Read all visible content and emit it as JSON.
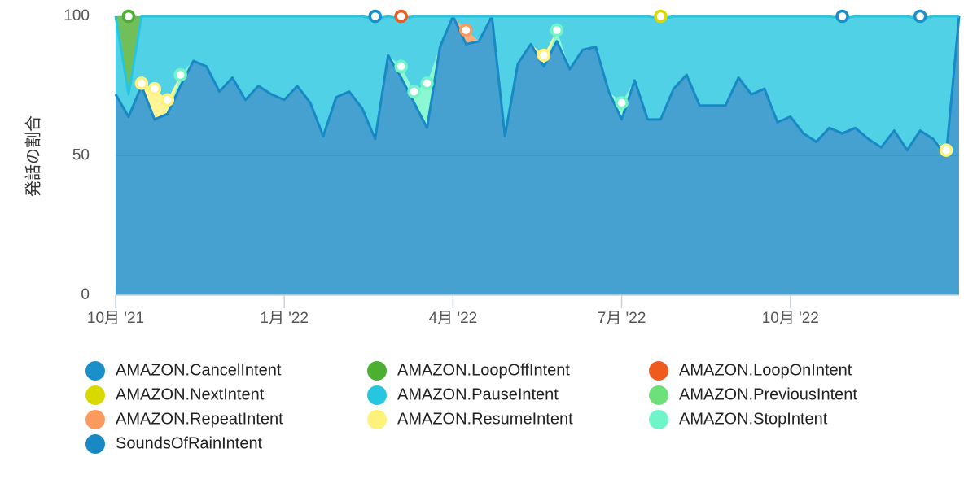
{
  "chart_data": {
    "type": "stacked_area",
    "y_label": "発話の割合",
    "x": [
      0,
      1,
      2,
      3,
      4,
      5,
      6,
      7,
      8,
      9,
      10,
      11,
      12,
      13,
      14,
      15,
      16,
      17,
      18,
      19,
      20,
      21,
      22,
      23,
      24,
      25,
      26,
      27,
      28,
      29,
      30,
      31,
      32,
      33,
      34,
      35,
      36,
      37,
      38,
      39,
      40,
      41,
      42,
      43,
      44,
      45,
      46,
      47,
      48,
      49,
      50,
      51,
      52,
      53,
      54,
      55,
      56,
      57,
      58,
      59,
      60,
      61,
      62,
      63,
      64,
      65
    ],
    "xlim": [
      0,
      65
    ],
    "xticks": [
      {
        "value": 0,
        "label": "10月 '21"
      },
      {
        "value": 13,
        "label": "1月 '22"
      },
      {
        "value": 26,
        "label": "4月 '22"
      },
      {
        "value": 39,
        "label": "7月 '22"
      },
      {
        "value": 52,
        "label": "10月 '22"
      }
    ],
    "ylim": [
      0,
      100
    ],
    "yticks": [
      0,
      50,
      100
    ],
    "grid": true,
    "series": [
      {
        "name": "AMAZON.CancelIntent",
        "color": "#1a8fc9",
        "values": [
          0,
          0,
          0,
          0,
          0,
          0,
          0,
          0,
          0,
          0,
          0,
          0,
          0,
          0,
          0,
          0,
          0,
          0,
          0,
          0,
          1,
          0,
          0,
          0,
          0,
          0,
          0,
          0,
          0,
          0,
          0,
          0,
          0,
          0,
          0,
          0,
          0,
          0,
          0,
          0,
          0,
          0,
          0,
          0,
          0,
          0,
          0,
          0,
          0,
          0,
          0,
          0,
          0,
          0,
          0,
          0,
          1,
          0,
          0,
          0,
          0,
          0,
          1,
          0,
          0,
          0
        ]
      },
      {
        "name": "AMAZON.LoopOffIntent",
        "color": "#4caf32",
        "values": [
          0,
          28,
          0,
          0,
          0,
          0,
          0,
          0,
          0,
          0,
          0,
          0,
          0,
          0,
          0,
          0,
          0,
          0,
          0,
          0,
          0,
          0,
          0,
          0,
          0,
          0,
          0,
          0,
          0,
          0,
          0,
          0,
          0,
          0,
          0,
          0,
          0,
          0,
          0,
          0,
          0,
          0,
          0,
          0,
          0,
          0,
          0,
          0,
          0,
          0,
          0,
          0,
          0,
          0,
          0,
          0,
          0,
          0,
          0,
          0,
          0,
          0,
          0,
          0,
          0,
          0
        ]
      },
      {
        "name": "AMAZON.LoopOnIntent",
        "color": "#ef5a1e",
        "values": [
          0,
          0,
          0,
          0,
          0,
          0,
          0,
          0,
          0,
          0,
          0,
          0,
          0,
          0,
          0,
          0,
          0,
          0,
          0,
          0,
          0,
          0,
          1,
          0,
          0,
          0,
          0,
          0,
          0,
          0,
          0,
          0,
          0,
          0,
          0,
          0,
          0,
          0,
          0,
          0,
          0,
          0,
          0,
          0,
          0,
          0,
          0,
          0,
          0,
          0,
          0,
          0,
          0,
          0,
          0,
          0,
          0,
          0,
          0,
          0,
          0,
          0,
          0,
          0,
          0,
          0
        ]
      },
      {
        "name": "AMAZON.NextIntent",
        "color": "#d9d900",
        "values": [
          0,
          0,
          0,
          0,
          0,
          0,
          0,
          0,
          0,
          0,
          0,
          0,
          0,
          0,
          0,
          0,
          0,
          0,
          0,
          0,
          0,
          0,
          0,
          0,
          0,
          0,
          0,
          0,
          0,
          0,
          0,
          0,
          0,
          0,
          0,
          0,
          0,
          0,
          0,
          0,
          0,
          0,
          1,
          0,
          0,
          0,
          0,
          0,
          0,
          0,
          0,
          0,
          0,
          0,
          0,
          0,
          0,
          0,
          0,
          0,
          0,
          0,
          0,
          0,
          0,
          0
        ]
      },
      {
        "name": "AMAZON.PauseIntent",
        "color": "#26c6e0",
        "values": [
          28,
          8,
          24,
          26,
          30,
          21,
          16,
          18,
          27,
          22,
          30,
          25,
          28,
          30,
          25,
          31,
          43,
          29,
          27,
          33,
          43,
          14,
          17,
          27,
          24,
          11,
          0,
          5,
          9,
          0,
          43,
          17,
          10,
          14,
          5,
          19,
          12,
          11,
          27,
          31,
          23,
          37,
          36,
          26,
          21,
          32,
          32,
          32,
          22,
          28,
          26,
          38,
          36,
          42,
          45,
          40,
          41,
          40,
          44,
          47,
          41,
          48,
          40,
          44,
          48,
          0
        ]
      },
      {
        "name": "AMAZON.PreviousIntent",
        "color": "#6de07a",
        "values": [
          0,
          0,
          0,
          0,
          0,
          0,
          0,
          0,
          0,
          0,
          0,
          0,
          0,
          0,
          0,
          0,
          0,
          0,
          0,
          0,
          0,
          0,
          0,
          0,
          0,
          0,
          0,
          0,
          0,
          0,
          0,
          0,
          0,
          0,
          0,
          0,
          0,
          0,
          0,
          0,
          0,
          0,
          0,
          0,
          0,
          0,
          0,
          0,
          0,
          0,
          0,
          0,
          0,
          0,
          0,
          0,
          0,
          0,
          0,
          0,
          0,
          0,
          0,
          0,
          0,
          0
        ]
      },
      {
        "name": "AMAZON.RepeatIntent",
        "color": "#fa9a5e",
        "values": [
          0,
          0,
          0,
          0,
          0,
          0,
          0,
          0,
          0,
          0,
          0,
          0,
          0,
          0,
          0,
          0,
          0,
          0,
          0,
          0,
          0,
          0,
          0,
          0,
          0,
          0,
          0,
          5,
          0,
          0,
          0,
          0,
          0,
          0,
          0,
          0,
          0,
          0,
          0,
          0,
          0,
          0,
          0,
          0,
          0,
          0,
          0,
          0,
          0,
          0,
          0,
          0,
          0,
          0,
          0,
          0,
          0,
          0,
          0,
          0,
          0,
          0,
          0,
          0,
          0,
          0
        ]
      },
      {
        "name": "AMAZON.ResumeIntent",
        "color": "#fff27a",
        "values": [
          0,
          0,
          1,
          11,
          5,
          0,
          0,
          0,
          0,
          0,
          0,
          0,
          0,
          0,
          0,
          0,
          0,
          0,
          0,
          0,
          0,
          0,
          0,
          0,
          0,
          0,
          0,
          0,
          0,
          0,
          0,
          0,
          0,
          4,
          0,
          0,
          0,
          0,
          0,
          0,
          0,
          0,
          0,
          0,
          0,
          0,
          0,
          0,
          0,
          0,
          0,
          0,
          0,
          0,
          0,
          0,
          0,
          0,
          0,
          0,
          0,
          0,
          0,
          0,
          2,
          0
        ]
      },
      {
        "name": "AMAZON.StopIntent",
        "color": "#6ff5c8",
        "values": [
          0,
          0,
          0,
          0,
          0,
          4,
          0,
          0,
          0,
          0,
          0,
          0,
          0,
          0,
          0,
          0,
          0,
          0,
          0,
          0,
          0,
          0,
          4,
          4,
          16,
          0,
          0,
          0,
          0,
          0,
          0,
          0,
          0,
          0,
          4,
          0,
          0,
          0,
          0,
          6,
          0,
          0,
          0,
          0,
          0,
          0,
          0,
          0,
          0,
          0,
          0,
          0,
          0,
          0,
          0,
          0,
          0,
          0,
          0,
          0,
          0,
          0,
          0,
          0,
          0,
          0
        ]
      },
      {
        "name": "SoundsOfRainIntent",
        "color": "#1889c4",
        "values": [
          72,
          64,
          75,
          63,
          65,
          75,
          84,
          82,
          73,
          78,
          70,
          75,
          72,
          70,
          75,
          69,
          57,
          71,
          73,
          67,
          56,
          86,
          78,
          69,
          60,
          89,
          100,
          90,
          91,
          100,
          57,
          83,
          90,
          82,
          91,
          81,
          88,
          89,
          73,
          63,
          77,
          63,
          63,
          74,
          79,
          68,
          68,
          68,
          78,
          72,
          74,
          62,
          64,
          58,
          55,
          60,
          58,
          60,
          56,
          53,
          59,
          52,
          59,
          56,
          50,
          100
        ]
      }
    ]
  }
}
